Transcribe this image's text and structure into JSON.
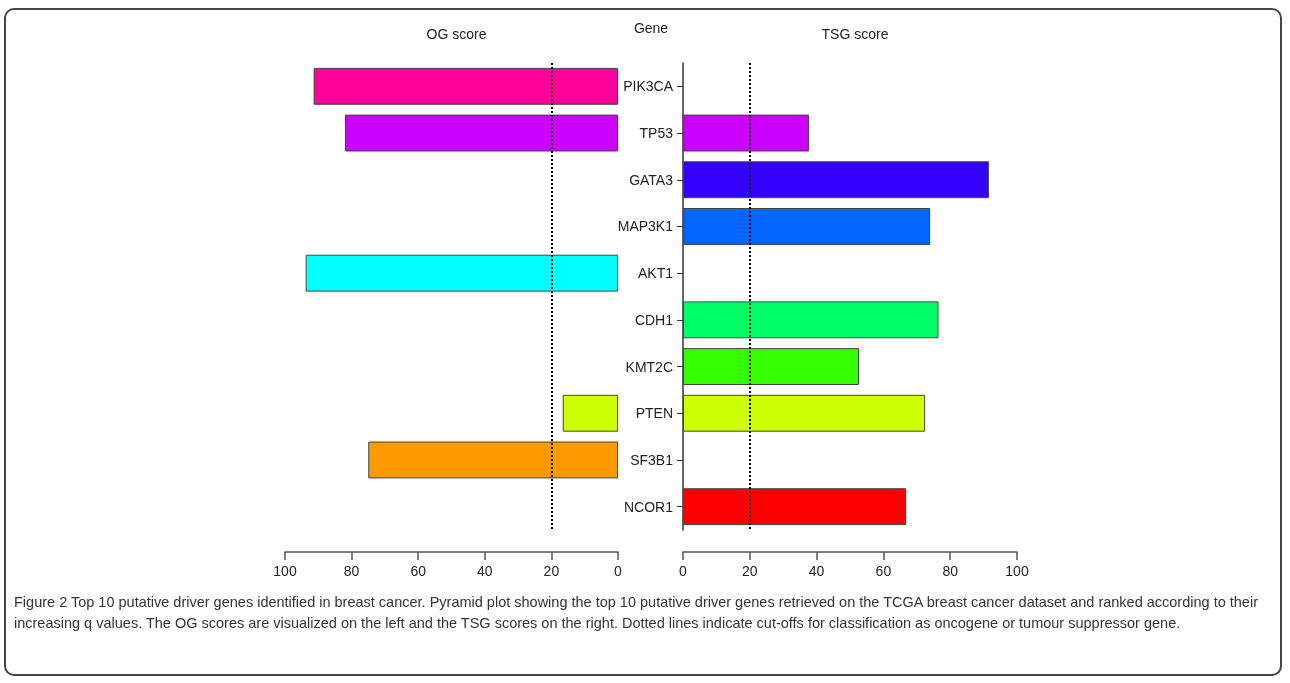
{
  "chart_data": [
    {
      "type": "bar",
      "orientation": "horizontal",
      "title": "OG score",
      "categories": [
        null,
        null,
        null,
        null,
        null,
        null,
        null,
        null,
        null,
        null
      ],
      "values": [
        91.4,
        82,
        null,
        null,
        93.8,
        null,
        null,
        16.6,
        75,
        null
      ],
      "colors": [
        "#ff0099",
        "#cc00ff",
        "#3300ff",
        "#0066ff",
        "#00ffff",
        "#00ff66",
        "#33ff00",
        "#ccff00",
        "#ff9900",
        "#ff0000"
      ],
      "xlim": [
        100,
        0
      ],
      "xticks": [
        100,
        80,
        60,
        40,
        20,
        0
      ],
      "grid": false,
      "ref_lines": [
        {
          "axis": "x",
          "value": 20,
          "line_style": "dotted",
          "color": "#000000"
        }
      ],
      "annotations": [
        "Figure 2 Top 10 putative driver genes identified in breast cancer. Pyramid plot showing the top 10 putative driver genes retrieved on the TCGA breast cancer dataset and ranked according to their increasing q values. The OG scores are visualized on the left and the TSG scores on the right. Dotted lines indicate cut-offs for classification as oncogene or tumour suppressor gene."
      ]
    },
    {
      "type": "bar",
      "orientation": "horizontal",
      "title": "TSG score",
      "ylabel": "Gene",
      "categories": [
        "PIK3CA",
        "TP53",
        "GATA3",
        "MAP3K1",
        "AKT1",
        "CDH1",
        "KMT2C",
        "PTEN",
        "SF3B1",
        "NCOR1"
      ],
      "values": [
        null,
        37.7,
        91.6,
        74,
        null,
        76.5,
        52.7,
        72.5,
        null,
        66.8
      ],
      "colors": [
        "#ff0099",
        "#cc00ff",
        "#3300ff",
        "#0066ff",
        "#00ffff",
        "#00ff66",
        "#33ff00",
        "#ccff00",
        "#ff9900",
        "#ff0000"
      ],
      "xlim": [
        0,
        100
      ],
      "xticks": [
        0,
        20,
        40,
        60,
        80,
        100
      ],
      "grid": false,
      "ref_lines": [
        {
          "axis": "x",
          "value": 20,
          "line_style": "dotted",
          "color": "#000000"
        }
      ]
    }
  ]
}
